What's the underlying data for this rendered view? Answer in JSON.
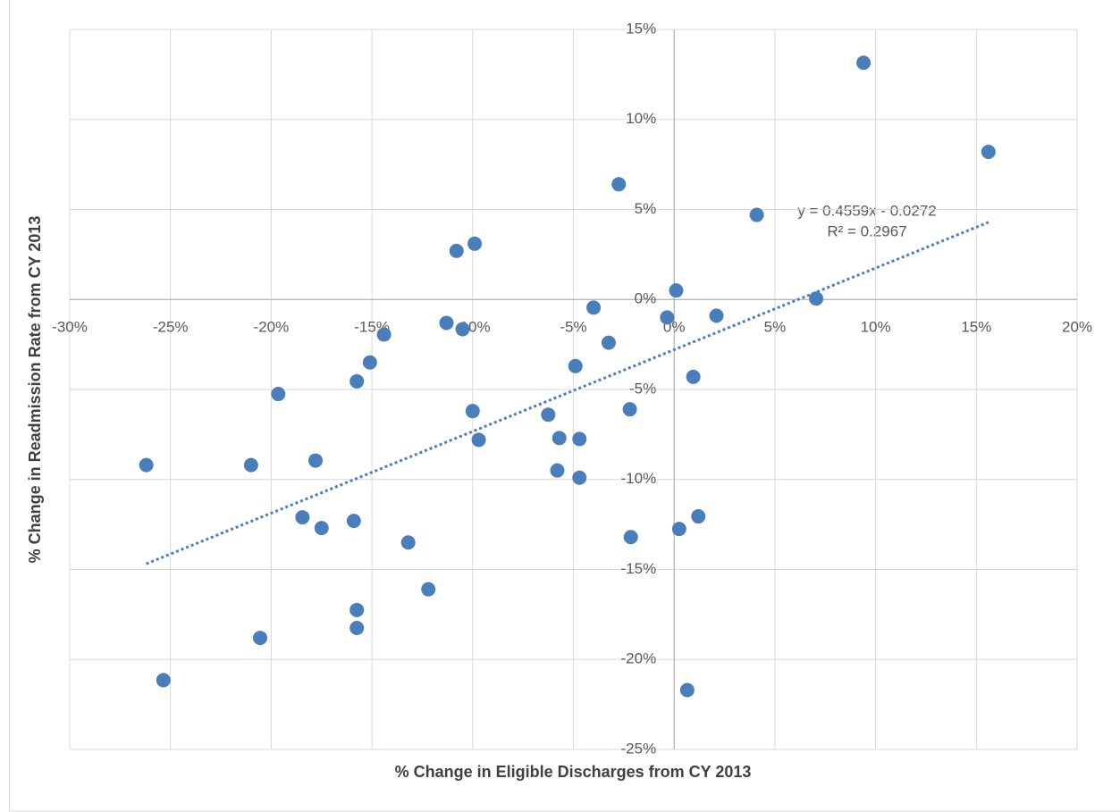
{
  "chart_data": {
    "type": "scatter",
    "x_label": "% Change in Eligible Discharges from CY 2013",
    "y_label": "% Change in Readmission Rate from CY 2013",
    "color": "#4a7ebb",
    "grid": true,
    "trendline_equation": "y = 0.4559x - 0.0272",
    "trendline_r2": "R² = 0.2967",
    "x": [
      9.4,
      15.6,
      -2.75,
      4.1,
      -9.9,
      -10.8,
      0.1,
      7.05,
      -4.0,
      -0.35,
      2.1,
      -11.3,
      -10.5,
      -14.4,
      -3.25,
      -15.1,
      -4.9,
      0.95,
      -15.75,
      -19.65,
      -10.0,
      -2.2,
      -6.25,
      -5.7,
      -4.7,
      -9.7,
      -17.8,
      -26.2,
      -21.0,
      -5.8,
      -4.7,
      1.2,
      -18.45,
      -15.9,
      -17.5,
      0.25,
      -2.15,
      -13.2,
      -12.2,
      -15.75,
      -15.75,
      -20.55,
      -25.35,
      0.65
    ],
    "values": [
      13.15,
      8.2,
      6.4,
      4.7,
      3.1,
      2.7,
      0.5,
      0.05,
      -0.45,
      -1.0,
      -0.9,
      -1.3,
      -1.65,
      -1.95,
      -2.4,
      -3.5,
      -3.7,
      -4.3,
      -4.55,
      -5.25,
      -6.2,
      -6.1,
      -6.4,
      -7.7,
      -7.75,
      -7.8,
      -8.95,
      -9.2,
      -9.2,
      -9.5,
      -9.9,
      -12.05,
      -12.1,
      -12.3,
      -12.7,
      -12.75,
      -13.2,
      -13.5,
      -16.1,
      -17.25,
      -18.25,
      -18.8,
      -21.15,
      -21.7
    ],
    "xlim": [
      -30,
      20
    ],
    "ylim": [
      -25,
      15
    ],
    "xticks": [
      {
        "value": -30,
        "label": "-30%"
      },
      {
        "value": -25,
        "label": "-25%"
      },
      {
        "value": -20,
        "label": "-20%"
      },
      {
        "value": -15,
        "label": "-15%"
      },
      {
        "value": -10,
        "label": "-10%"
      },
      {
        "value": -5,
        "label": "-5%"
      },
      {
        "value": 0,
        "label": "0%"
      },
      {
        "value": 5,
        "label": "5%"
      },
      {
        "value": 10,
        "label": "10%"
      },
      {
        "value": 15,
        "label": "15%"
      },
      {
        "value": 20,
        "label": "20%"
      }
    ],
    "yticks": [
      {
        "value": -25,
        "label": "-25%"
      },
      {
        "value": -20,
        "label": "-20%"
      },
      {
        "value": -15,
        "label": "-15%"
      },
      {
        "value": -10,
        "label": "-10%"
      },
      {
        "value": -5,
        "label": "-5%"
      },
      {
        "value": 0,
        "label": "0%"
      },
      {
        "value": 5,
        "label": "5%"
      },
      {
        "value": 10,
        "label": "10%"
      },
      {
        "value": 15,
        "label": "15%"
      }
    ]
  }
}
